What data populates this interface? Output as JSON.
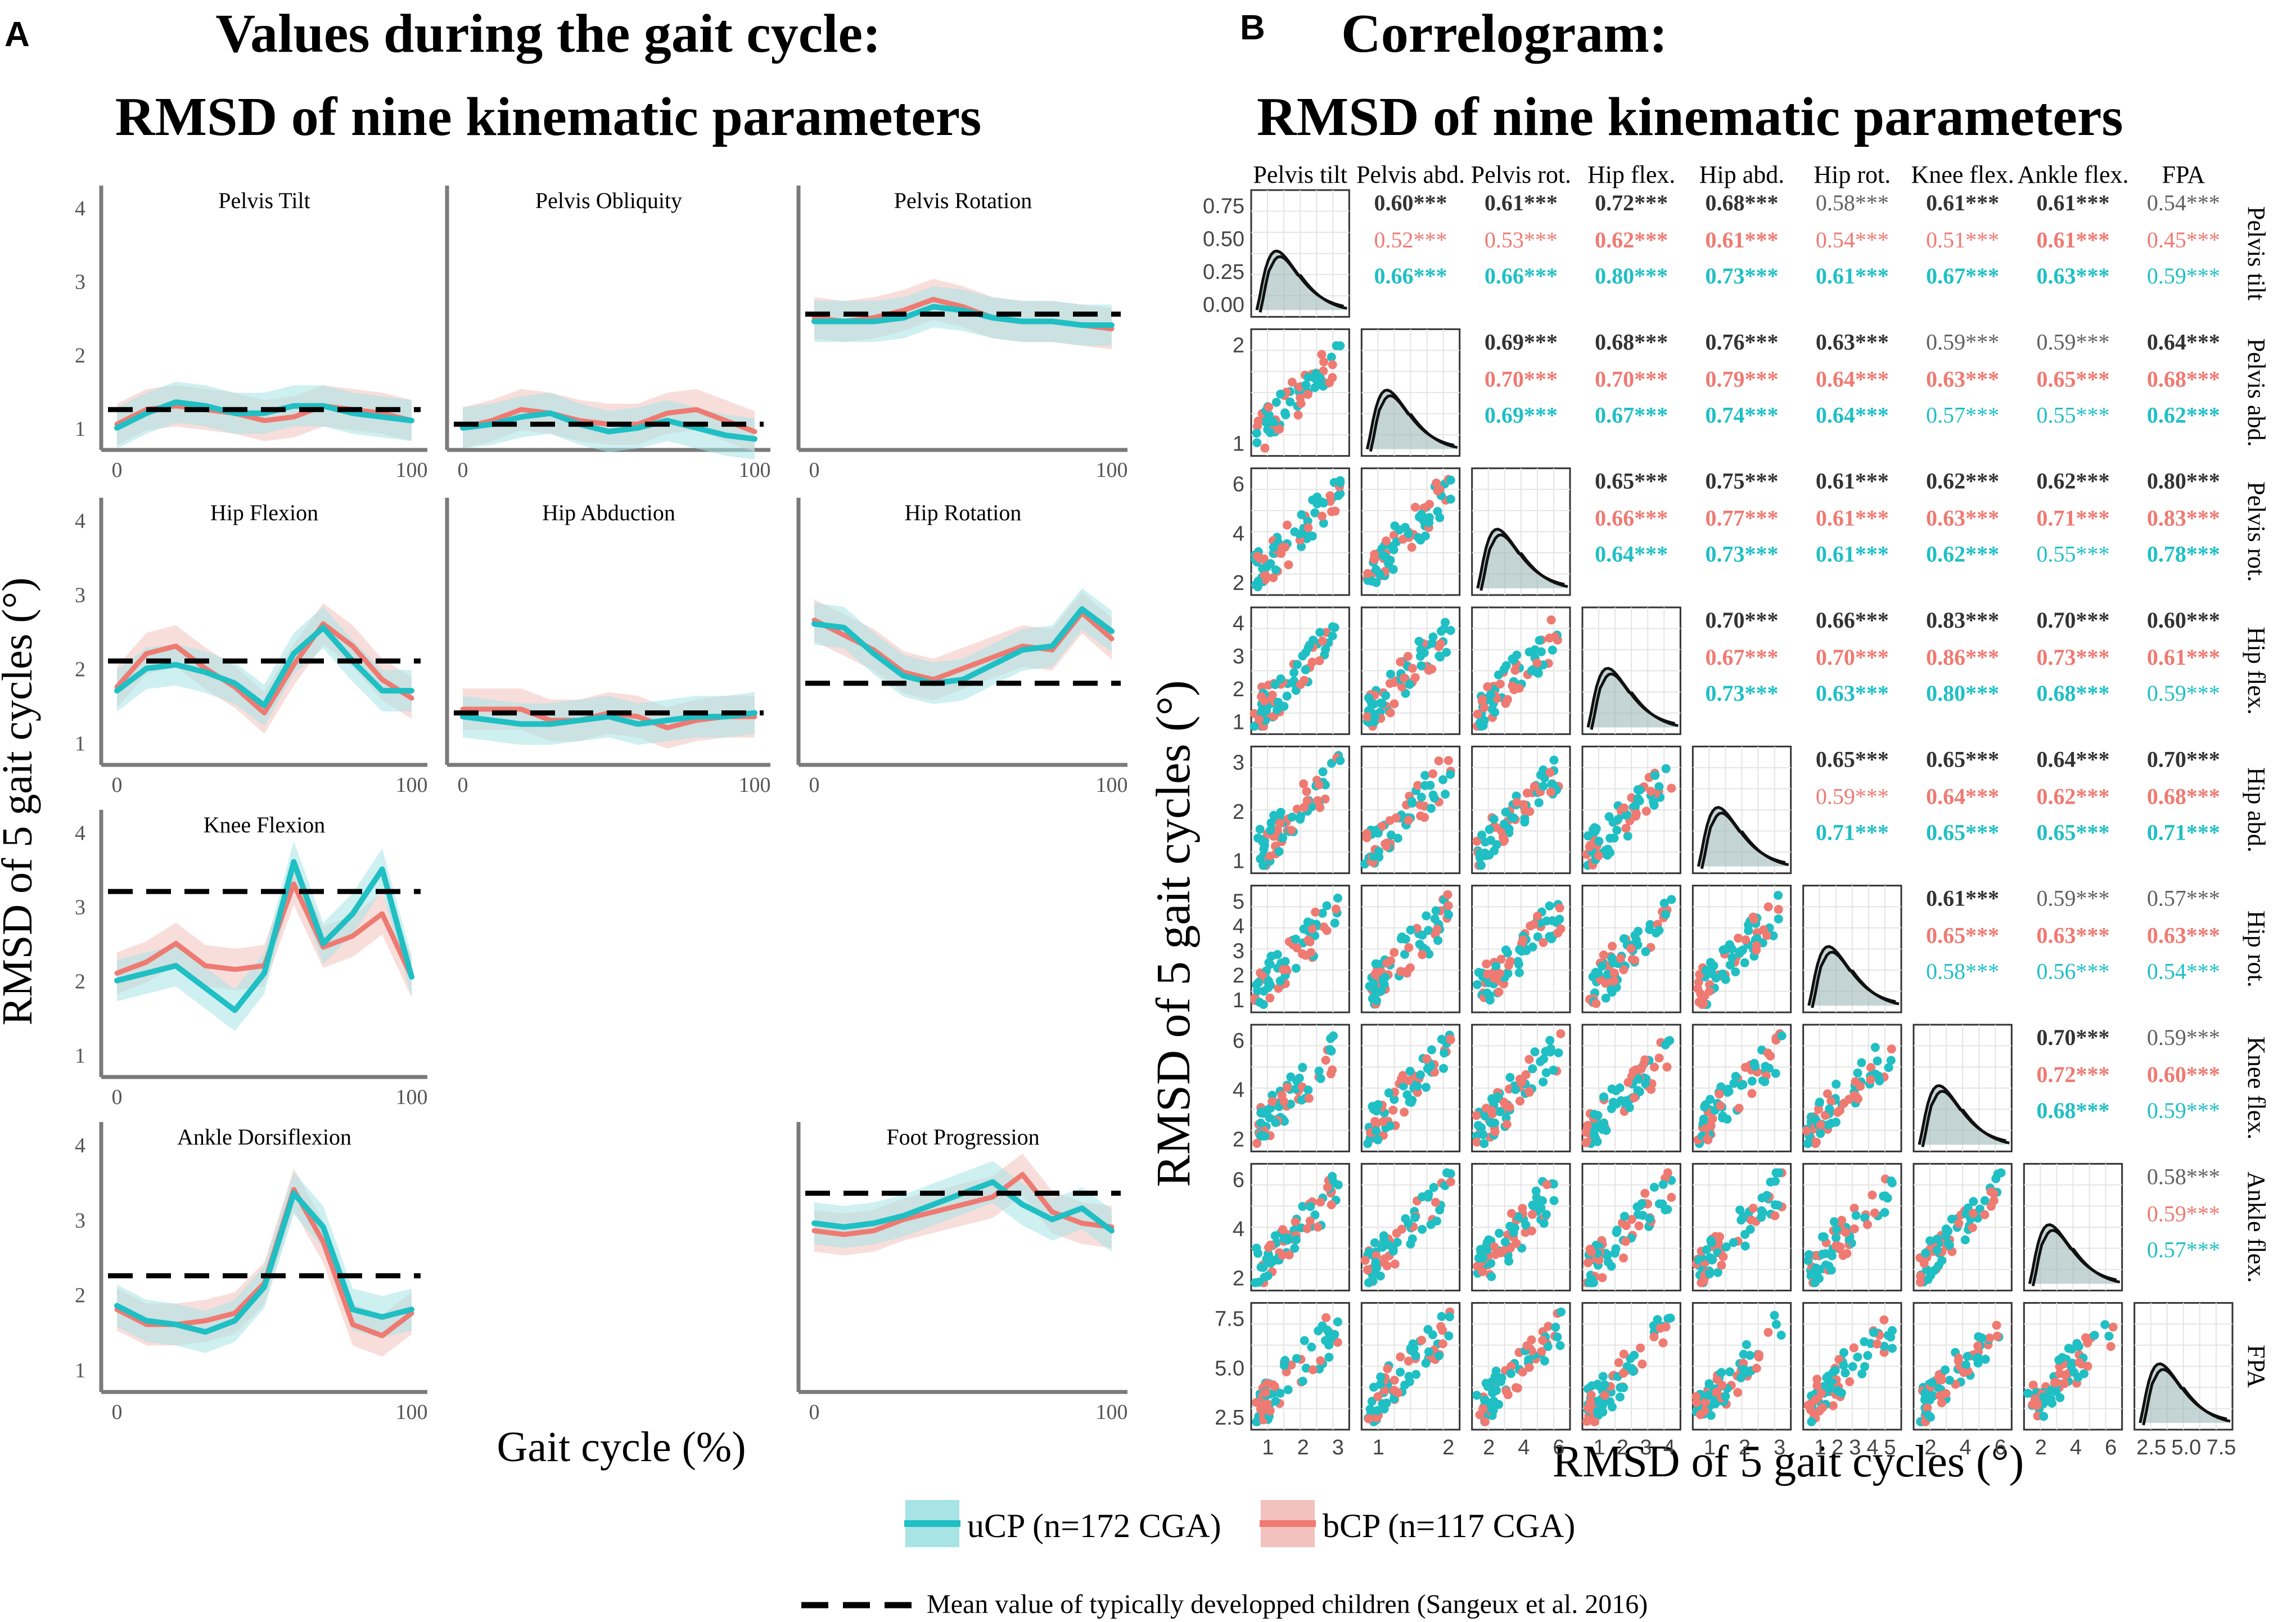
{
  "colors": {
    "ucp": "#1FBFC4",
    "bcp": "#EE7A72",
    "ucp_band": "#A8E3E5",
    "bcp_band": "#F3C2BE",
    "ref": "#000000",
    "grey": "#606060",
    "bold_grey": "#333333"
  },
  "panel_a": {
    "letter": "A",
    "title_line1": "Values during the gait cycle:",
    "title_line2": "RMSD of nine kinematic parameters",
    "ylabel": "RMSD of 5 gait cycles (°)",
    "xlabel": "Gait cycle (%)"
  },
  "panel_b": {
    "letter": "B",
    "title_line1": "Correlogram:",
    "title_line2": "RMSD of nine kinematic parameters",
    "ylabel": "RMSD of 5 gait cycles (°)",
    "xlabel": "RMSD of 5 gait cycles (°)"
  },
  "legend": {
    "ucp_label": "uCP (n=172 CGA)",
    "bcp_label": "bCP (n=117 CGA)",
    "ref_label": "Mean value of typically developped children (Sangeux et al. 2016)"
  },
  "chart_data": [
    {
      "type": "line",
      "panel": "A",
      "x_range": [
        0,
        100
      ],
      "x_ticks": [
        "0",
        "100"
      ],
      "x_label": "Gait cycle (%)",
      "y_label": "RMSD of 5 gait cycles (°)",
      "subplots": [
        {
          "title": "Pelvis Tilt",
          "ylim": [
            0.7,
            4.3
          ],
          "y_ticks": [
            "1",
            "2",
            "3",
            "4"
          ],
          "ref": 1.25,
          "x": [
            0,
            10,
            20,
            30,
            40,
            50,
            60,
            70,
            80,
            90,
            100
          ],
          "ucp": [
            1.0,
            1.2,
            1.35,
            1.3,
            1.2,
            1.2,
            1.3,
            1.3,
            1.2,
            1.15,
            1.1
          ],
          "bcp": [
            1.05,
            1.25,
            1.3,
            1.25,
            1.2,
            1.1,
            1.15,
            1.3,
            1.25,
            1.2,
            1.1
          ]
        },
        {
          "title": "Pelvis Obliquity",
          "ylim": [
            0.7,
            4.3
          ],
          "y_ticks": [],
          "ref": 1.05,
          "x": [
            0,
            10,
            20,
            30,
            40,
            50,
            60,
            70,
            80,
            90,
            100
          ],
          "ucp": [
            1.0,
            1.05,
            1.15,
            1.2,
            1.05,
            0.95,
            1.0,
            1.1,
            1.0,
            0.9,
            0.85
          ],
          "bcp": [
            1.0,
            1.1,
            1.25,
            1.2,
            1.1,
            1.05,
            1.05,
            1.2,
            1.25,
            1.1,
            0.95
          ]
        },
        {
          "title": "Pelvis Rotation",
          "ylim": [
            0.7,
            4.3
          ],
          "y_ticks": [],
          "ref": 2.55,
          "x": [
            0,
            10,
            20,
            30,
            40,
            50,
            60,
            70,
            80,
            90,
            100
          ],
          "ucp": [
            2.45,
            2.45,
            2.45,
            2.5,
            2.65,
            2.6,
            2.5,
            2.45,
            2.45,
            2.4,
            2.4
          ],
          "bcp": [
            2.5,
            2.45,
            2.5,
            2.6,
            2.75,
            2.65,
            2.5,
            2.45,
            2.45,
            2.4,
            2.35
          ]
        },
        {
          "title": "Hip Flexion",
          "ylim": [
            0.7,
            4.3
          ],
          "y_ticks": [
            "1",
            "2",
            "3",
            "4"
          ],
          "ref": 2.1,
          "x": [
            0,
            10,
            20,
            30,
            40,
            50,
            60,
            70,
            80,
            90,
            100
          ],
          "ucp": [
            1.7,
            2.0,
            2.05,
            1.95,
            1.8,
            1.5,
            2.2,
            2.55,
            2.1,
            1.7,
            1.7
          ],
          "bcp": [
            1.75,
            2.2,
            2.3,
            2.0,
            1.75,
            1.4,
            2.05,
            2.6,
            2.3,
            1.85,
            1.6
          ]
        },
        {
          "title": "Hip Abduction",
          "ylim": [
            0.7,
            4.3
          ],
          "y_ticks": [],
          "ref": 1.4,
          "x": [
            0,
            10,
            20,
            30,
            40,
            50,
            60,
            70,
            80,
            90,
            100
          ],
          "ucp": [
            1.35,
            1.3,
            1.25,
            1.25,
            1.3,
            1.35,
            1.25,
            1.3,
            1.35,
            1.35,
            1.4
          ],
          "bcp": [
            1.45,
            1.45,
            1.45,
            1.3,
            1.3,
            1.4,
            1.35,
            1.2,
            1.3,
            1.35,
            1.35
          ]
        },
        {
          "title": "Hip Rotation",
          "ylim": [
            0.7,
            4.3
          ],
          "y_ticks": [],
          "ref": 1.8,
          "x": [
            0,
            10,
            20,
            30,
            40,
            50,
            60,
            70,
            80,
            90,
            100
          ],
          "ucp": [
            2.6,
            2.55,
            2.2,
            1.9,
            1.8,
            1.85,
            2.05,
            2.25,
            2.3,
            2.8,
            2.5
          ],
          "bcp": [
            2.65,
            2.45,
            2.25,
            1.95,
            1.85,
            2.0,
            2.15,
            2.3,
            2.25,
            2.75,
            2.4
          ]
        },
        {
          "title": "Knee Flexion",
          "ylim": [
            0.7,
            4.3
          ],
          "y_ticks": [
            "1",
            "2",
            "3",
            "4"
          ],
          "ref": 3.2,
          "x": [
            0,
            10,
            20,
            30,
            40,
            50,
            60,
            70,
            80,
            90,
            100
          ],
          "ucp": [
            2.0,
            2.1,
            2.2,
            1.9,
            1.6,
            2.1,
            3.6,
            2.5,
            2.9,
            3.5,
            2.05
          ],
          "bcp": [
            2.1,
            2.25,
            2.5,
            2.2,
            2.15,
            2.2,
            3.3,
            2.45,
            2.6,
            2.9,
            2.05
          ]
        },
        {
          "title": "Ankle Dorsiflexion",
          "ylim": [
            0.7,
            4.3
          ],
          "y_ticks": [
            "1",
            "2",
            "3",
            "4"
          ],
          "ref": 2.25,
          "x": [
            0,
            10,
            20,
            30,
            40,
            50,
            60,
            70,
            80,
            90,
            100
          ],
          "ucp": [
            1.85,
            1.65,
            1.6,
            1.5,
            1.65,
            2.1,
            3.35,
            2.9,
            1.8,
            1.7,
            1.8
          ],
          "bcp": [
            1.8,
            1.6,
            1.6,
            1.65,
            1.75,
            2.15,
            3.4,
            2.7,
            1.6,
            1.45,
            1.75
          ]
        },
        {
          "title": "Foot Progression",
          "ylim": [
            0.7,
            4.3
          ],
          "y_ticks": [],
          "ref": 3.35,
          "x": [
            0,
            10,
            20,
            30,
            40,
            50,
            60,
            70,
            80,
            90,
            100
          ],
          "ucp": [
            2.95,
            2.9,
            2.95,
            3.05,
            3.2,
            3.35,
            3.5,
            3.2,
            3.0,
            3.15,
            2.85
          ],
          "bcp": [
            2.85,
            2.8,
            2.85,
            3.0,
            3.1,
            3.2,
            3.3,
            3.6,
            3.1,
            2.95,
            2.9
          ]
        }
      ]
    },
    {
      "type": "scatter",
      "panel": "B",
      "kind": "correlogram",
      "variables": [
        "Pelvis tilt",
        "Pelvis abd.",
        "Pelvis rot.",
        "Hip flex.",
        "Hip abd.",
        "Hip rot.",
        "Knee flex.",
        "Ankle flex.",
        "FPA"
      ],
      "col_labels": [
        "Pelvis tilt",
        "Pelvis abd.",
        "Pelvis rot.",
        "Hip flex.",
        "Hip abd.",
        "Hip rot.",
        "Knee flex.",
        "Ankle flex.",
        "FPA"
      ],
      "row_labels": [
        "Pelvis tilt",
        "Pelvis abd.",
        "Pelvis rot.",
        "Hip flex.",
        "Hip abd.",
        "Hip rot.",
        "Knee flex.",
        "Ankle flex.",
        "FPA"
      ],
      "x_tick_labels": [
        [
          "1",
          "2",
          "3"
        ],
        [
          "1",
          "2"
        ],
        [
          "2",
          "4",
          "6"
        ],
        [
          "1",
          "2",
          "3",
          "4"
        ],
        [
          "1",
          "2",
          "3"
        ],
        [
          "1",
          "2",
          "3",
          "4",
          "5"
        ],
        [
          "2",
          "4",
          "6"
        ],
        [
          "2",
          "4",
          "6"
        ],
        [
          "2.5",
          "5.0",
          "7.5"
        ]
      ],
      "y_tick_labels": [
        [
          "0.00",
          "0.25",
          "0.50",
          "0.75"
        ],
        [
          "1",
          "2"
        ],
        [
          "2",
          "4",
          "6"
        ],
        [
          "1",
          "2",
          "3",
          "4"
        ],
        [
          "1",
          "2",
          "3"
        ],
        [
          "1",
          "2",
          "3",
          "4",
          "5"
        ],
        [
          "2",
          "4",
          "6"
        ],
        [
          "2",
          "4",
          "6"
        ],
        [
          "2.5",
          "5.0",
          "7.5"
        ]
      ],
      "correlations": [
        {
          "row": 0,
          "col": 1,
          "all": "0.60***",
          "bcp": "0.52***",
          "ucp": "0.66***"
        },
        {
          "row": 0,
          "col": 2,
          "all": "0.61***",
          "bcp": "0.53***",
          "ucp": "0.66***"
        },
        {
          "row": 0,
          "col": 3,
          "all": "0.72***",
          "bcp": "0.62***",
          "ucp": "0.80***"
        },
        {
          "row": 0,
          "col": 4,
          "all": "0.68***",
          "bcp": "0.61***",
          "ucp": "0.73***"
        },
        {
          "row": 0,
          "col": 5,
          "all": "0.58***",
          "bcp": "0.54***",
          "ucp": "0.61***"
        },
        {
          "row": 0,
          "col": 6,
          "all": "0.61***",
          "bcp": "0.51***",
          "ucp": "0.67***"
        },
        {
          "row": 0,
          "col": 7,
          "all": "0.61***",
          "bcp": "0.61***",
          "ucp": "0.63***"
        },
        {
          "row": 0,
          "col": 8,
          "all": "0.54***",
          "bcp": "0.45***",
          "ucp": "0.59***"
        },
        {
          "row": 1,
          "col": 2,
          "all": "0.69***",
          "bcp": "0.70***",
          "ucp": "0.69***"
        },
        {
          "row": 1,
          "col": 3,
          "all": "0.68***",
          "bcp": "0.70***",
          "ucp": "0.67***"
        },
        {
          "row": 1,
          "col": 4,
          "all": "0.76***",
          "bcp": "0.79***",
          "ucp": "0.74***"
        },
        {
          "row": 1,
          "col": 5,
          "all": "0.63***",
          "bcp": "0.64***",
          "ucp": "0.64***"
        },
        {
          "row": 1,
          "col": 6,
          "all": "0.59***",
          "bcp": "0.63***",
          "ucp": "0.57***"
        },
        {
          "row": 1,
          "col": 7,
          "all": "0.59***",
          "bcp": "0.65***",
          "ucp": "0.55***"
        },
        {
          "row": 1,
          "col": 8,
          "all": "0.64***",
          "bcp": "0.68***",
          "ucp": "0.62***"
        },
        {
          "row": 2,
          "col": 3,
          "all": "0.65***",
          "bcp": "0.66***",
          "ucp": "0.64***"
        },
        {
          "row": 2,
          "col": 4,
          "all": "0.75***",
          "bcp": "0.77***",
          "ucp": "0.73***"
        },
        {
          "row": 2,
          "col": 5,
          "all": "0.61***",
          "bcp": "0.61***",
          "ucp": "0.61***"
        },
        {
          "row": 2,
          "col": 6,
          "all": "0.62***",
          "bcp": "0.63***",
          "ucp": "0.62***"
        },
        {
          "row": 2,
          "col": 7,
          "all": "0.62***",
          "bcp": "0.71***",
          "ucp": "0.55***"
        },
        {
          "row": 2,
          "col": 8,
          "all": "0.80***",
          "bcp": "0.83***",
          "ucp": "0.78***"
        },
        {
          "row": 3,
          "col": 4,
          "all": "0.70***",
          "bcp": "0.67***",
          "ucp": "0.73***"
        },
        {
          "row": 3,
          "col": 5,
          "all": "0.66***",
          "bcp": "0.70***",
          "ucp": "0.63***"
        },
        {
          "row": 3,
          "col": 6,
          "all": "0.83***",
          "bcp": "0.86***",
          "ucp": "0.80***"
        },
        {
          "row": 3,
          "col": 7,
          "all": "0.70***",
          "bcp": "0.73***",
          "ucp": "0.68***"
        },
        {
          "row": 3,
          "col": 8,
          "all": "0.60***",
          "bcp": "0.61***",
          "ucp": "0.59***"
        },
        {
          "row": 4,
          "col": 5,
          "all": "0.65***",
          "bcp": "0.59***",
          "ucp": "0.71***"
        },
        {
          "row": 4,
          "col": 6,
          "all": "0.65***",
          "bcp": "0.64***",
          "ucp": "0.65***"
        },
        {
          "row": 4,
          "col": 7,
          "all": "0.64***",
          "bcp": "0.62***",
          "ucp": "0.65***"
        },
        {
          "row": 4,
          "col": 8,
          "all": "0.70***",
          "bcp": "0.68***",
          "ucp": "0.71***"
        },
        {
          "row": 5,
          "col": 6,
          "all": "0.61***",
          "bcp": "0.65***",
          "ucp": "0.58***"
        },
        {
          "row": 5,
          "col": 7,
          "all": "0.59***",
          "bcp": "0.63***",
          "ucp": "0.56***"
        },
        {
          "row": 5,
          "col": 8,
          "all": "0.57***",
          "bcp": "0.63***",
          "ucp": "0.54***"
        },
        {
          "row": 6,
          "col": 7,
          "all": "0.70***",
          "bcp": "0.72***",
          "ucp": "0.68***"
        },
        {
          "row": 6,
          "col": 8,
          "all": "0.59***",
          "bcp": "0.60***",
          "ucp": "0.59***"
        },
        {
          "row": 7,
          "col": 8,
          "all": "0.58***",
          "bcp": "0.59***",
          "ucp": "0.57***"
        }
      ]
    }
  ]
}
